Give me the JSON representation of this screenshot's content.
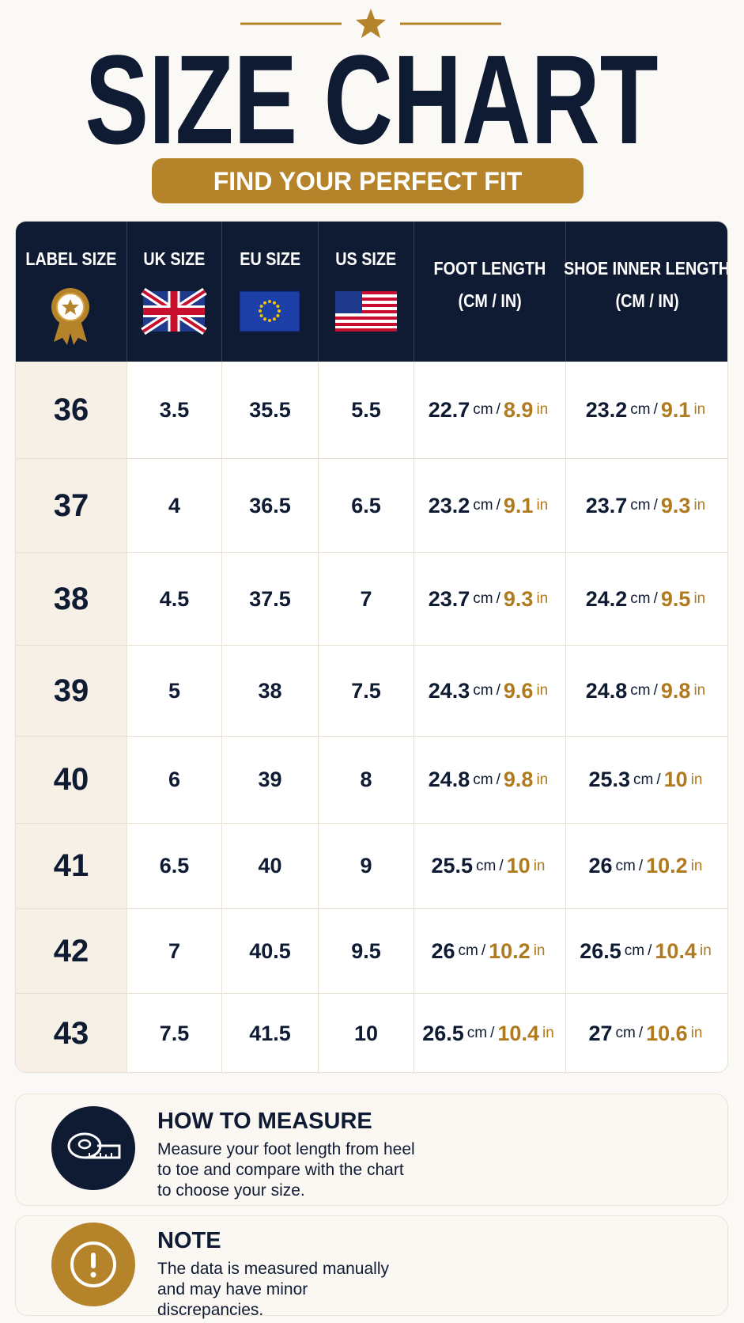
{
  "header": {
    "title": "SIZE CHART",
    "subtitle": "FIND YOUR PERFECT FIT"
  },
  "table": {
    "columns": [
      {
        "title": "LABEL SIZE"
      },
      {
        "title": "UK SIZE"
      },
      {
        "title": "EU SIZE"
      },
      {
        "title": "US SIZE"
      },
      {
        "title": "FOOT LENGTH",
        "unit": "(CM / IN)"
      },
      {
        "title": "SHOE INNER LENGTH",
        "unit": "(CM / IN)"
      }
    ],
    "units": {
      "cm": "cm",
      "separator": "/",
      "in": "in"
    },
    "rows": [
      {
        "label": "36",
        "uk": "3.5",
        "eu": "35.5",
        "us": "5.5",
        "foot": {
          "cm": "22.7",
          "in": "8.9"
        },
        "shoe": {
          "cm": "23.2",
          "in": "9.1"
        }
      },
      {
        "label": "37",
        "uk": "4",
        "eu": "36.5",
        "us": "6.5",
        "foot": {
          "cm": "23.2",
          "in": "9.1"
        },
        "shoe": {
          "cm": "23.7",
          "in": "9.3"
        }
      },
      {
        "label": "38",
        "uk": "4.5",
        "eu": "37.5",
        "us": "7",
        "foot": {
          "cm": "23.7",
          "in": "9.3"
        },
        "shoe": {
          "cm": "24.2",
          "in": "9.5"
        }
      },
      {
        "label": "39",
        "uk": "5",
        "eu": "38",
        "us": "7.5",
        "foot": {
          "cm": "24.3",
          "in": "9.6"
        },
        "shoe": {
          "cm": "24.8",
          "in": "9.8"
        }
      },
      {
        "label": "40",
        "uk": "6",
        "eu": "39",
        "us": "8",
        "foot": {
          "cm": "24.8",
          "in": "9.8"
        },
        "shoe": {
          "cm": "25.3",
          "in": "10"
        }
      },
      {
        "label": "41",
        "uk": "6.5",
        "eu": "40",
        "us": "9",
        "foot": {
          "cm": "25.5",
          "in": "10"
        },
        "shoe": {
          "cm": "26",
          "in": "10.2"
        }
      },
      {
        "label": "42",
        "uk": "7",
        "eu": "40.5",
        "us": "9.5",
        "foot": {
          "cm": "26",
          "in": "10.2"
        },
        "shoe": {
          "cm": "26.5",
          "in": "10.4"
        }
      },
      {
        "label": "43",
        "uk": "7.5",
        "eu": "41.5",
        "us": "10",
        "foot": {
          "cm": "26.5",
          "in": "10.4"
        },
        "shoe": {
          "cm": "27",
          "in": "10.6"
        }
      }
    ]
  },
  "info": [
    {
      "title": "HOW TO MEASURE",
      "text": "Measure your foot length from heel to toe and compare with the chart to choose your size."
    },
    {
      "title": "NOTE",
      "text": "The data is measured manually and may have minor discrepancies."
    }
  ]
}
